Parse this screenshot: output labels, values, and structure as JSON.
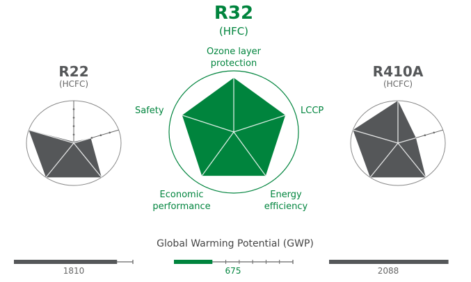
{
  "colors": {
    "green": "#00843d",
    "gray": "#555759",
    "text_gray": "#666666"
  },
  "chart_data": {
    "type": "radar",
    "axes": [
      "Ozone layer protection",
      "LCCP",
      "Energy efficiency",
      "Economic performance",
      "Safety"
    ],
    "axis_labels": {
      "ozone_line1": "Ozone layer",
      "ozone_line2": "protection",
      "lccp": "LCCP",
      "energy_line1": "Energy",
      "energy_line2": "efficiency",
      "economic_line1": "Economic",
      "economic_line2": "performance",
      "safety": "Safety"
    },
    "range": [
      0,
      1
    ],
    "series": [
      {
        "name": "R22",
        "subtitle": "(HCFC)",
        "values": [
          0.03,
          0.38,
          1,
          1,
          1
        ],
        "gwp": 1810
      },
      {
        "name": "R32",
        "subtitle": "(HFC)",
        "values": [
          1,
          1,
          1,
          1,
          1
        ],
        "gwp": 675
      },
      {
        "name": "R410A",
        "subtitle": "(HCFC)",
        "values": [
          1,
          0.4,
          1,
          1,
          1
        ],
        "gwp": 2088
      }
    ],
    "gwp_title": "Global Warming Potential (GWP)",
    "gwp_max": 2088,
    "gwp_labels": [
      "1810",
      "675",
      "2088"
    ]
  }
}
